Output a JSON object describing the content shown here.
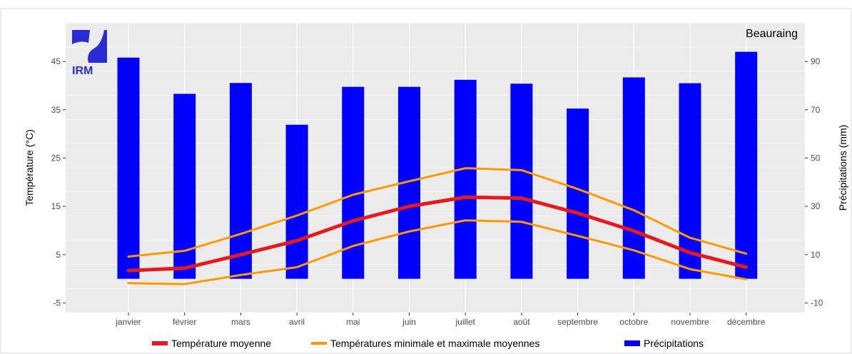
{
  "chart_data": {
    "type": "bar+line",
    "station": "Beauraing",
    "logo_text": "IRM",
    "categories": [
      "janvier",
      "février",
      "mars",
      "avril",
      "mai",
      "juin",
      "juillet",
      "août",
      "septembre",
      "octobre",
      "novembre",
      "décembre"
    ],
    "y_left": {
      "label": "Température (°C)",
      "ticks": [
        -5,
        5,
        15,
        25,
        35,
        45
      ],
      "range": [
        -7,
        53
      ]
    },
    "y_right": {
      "label": "Précipitations (mm)",
      "ticks": [
        -10,
        10,
        30,
        50,
        70,
        90
      ],
      "range": [
        -14,
        106
      ]
    },
    "grid": true,
    "series": [
      {
        "name": "Précipitations",
        "type": "bar",
        "axis": "right",
        "color": "#0000ff",
        "values": [
          91.6,
          76.6,
          81.1,
          63.8,
          79.5,
          79.5,
          82.4,
          80.8,
          70.5,
          83.4,
          81.0,
          94.0
        ]
      },
      {
        "name": "Température moyenne",
        "type": "line",
        "axis": "left",
        "color": "#e41a1c",
        "values": [
          1.7,
          2.2,
          5.0,
          7.9,
          12.0,
          15.0,
          16.9,
          16.7,
          13.6,
          9.9,
          5.4,
          2.4
        ]
      },
      {
        "name": "Températures minimale et maximale moyennes",
        "type": "line",
        "axis": "left",
        "color": "#ff9900",
        "values": [
          4.6,
          5.8,
          9.3,
          13.1,
          17.4,
          20.2,
          22.9,
          22.5,
          18.6,
          14.2,
          8.5,
          5.2
        ]
      },
      {
        "name": "Températures minimale et maximale moyennes",
        "type": "line",
        "axis": "left",
        "color": "#ff9900",
        "hide_in_legend": true,
        "values": [
          -0.9,
          -1.1,
          0.8,
          2.4,
          6.8,
          9.8,
          12.1,
          11.8,
          8.9,
          5.9,
          2.0,
          -0.1
        ]
      }
    ],
    "legend": {
      "position": "bottom",
      "items": [
        "Température moyenne",
        "Températures minimale et maximale moyennes",
        "Précipitations"
      ]
    }
  },
  "colors": {
    "panel": "#ebebeb",
    "grid": "#ffffff",
    "bar": "#0000ff",
    "mean": "#e41a1c",
    "minmax": "#ff9900"
  }
}
